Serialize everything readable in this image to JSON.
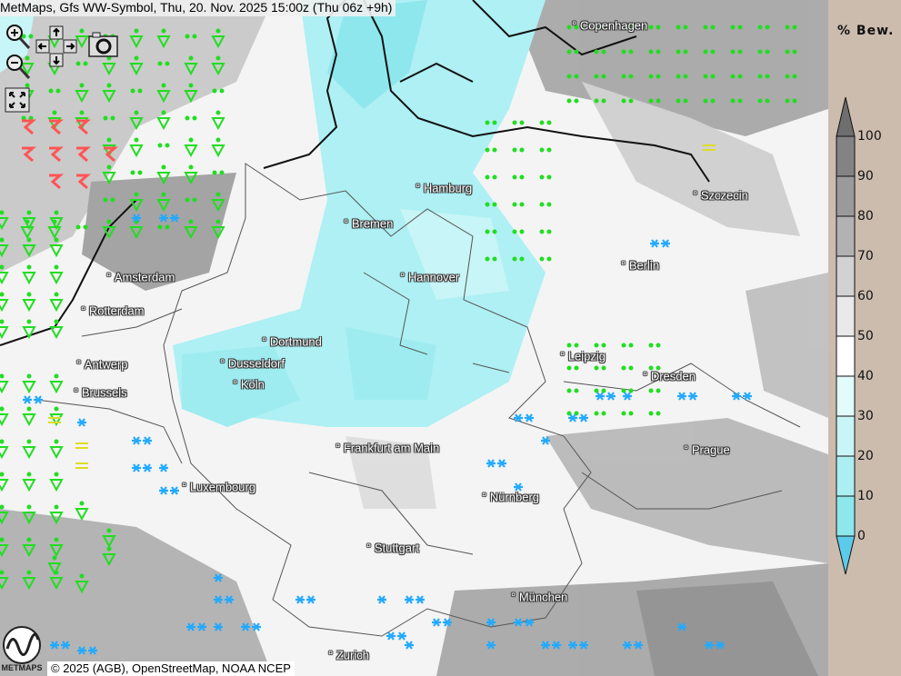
{
  "title": "MetMaps, Gfs WW-Symbol, Thu, 20. Nov. 2025 15:00z (Thu 06z +9h)",
  "controls": {
    "zoom_in": "zoom-in-icon",
    "zoom_out": "zoom-out-icon",
    "pan": "pan-arrows-icon",
    "screenshot": "camera-icon",
    "fullscreen": "fullscreen-icon"
  },
  "cities": [
    {
      "name": "Copenhagen"
    },
    {
      "name": "Hamburg"
    },
    {
      "name": "Bremen"
    },
    {
      "name": "Szczecin"
    },
    {
      "name": "Berlin"
    },
    {
      "name": "Amsterdam"
    },
    {
      "name": "Hannover"
    },
    {
      "name": "Rotterdam"
    },
    {
      "name": "Dortmund"
    },
    {
      "name": "Leipzig"
    },
    {
      "name": "Antwerp"
    },
    {
      "name": "Dusseldorf"
    },
    {
      "name": "Dresden"
    },
    {
      "name": "Köln"
    },
    {
      "name": "Brussels"
    },
    {
      "name": "Frankfurt am Main"
    },
    {
      "name": "Prague"
    },
    {
      "name": "Luxembourg"
    },
    {
      "name": "Nürnberg"
    },
    {
      "name": "Stuttgart"
    },
    {
      "name": "München"
    },
    {
      "name": "Zurich"
    }
  ],
  "copyright": "© 2025 (AGB), OpenStreetMap, NOAA NCEP",
  "logo_text": "METMAPS",
  "legend": {
    "title": "% Bew.",
    "ticks": [
      "100",
      "90",
      "80",
      "70",
      "60",
      "50",
      "40",
      "30",
      "20",
      "10",
      "0"
    ],
    "colors": [
      "#6e6e6e",
      "#838383",
      "#9a9a9a",
      "#b2b2b2",
      "#d2d2d2",
      "#e9e9e9",
      "#ffffff",
      "#e2fbfb",
      "#c8f5f7",
      "#aceff3",
      "#8ee7ed",
      "#5ccbea"
    ]
  },
  "symbol_colors": {
    "rain": "#22dd22",
    "snow": "#22aaff",
    "thunder": "#ff5555",
    "fog": "#dddd22"
  }
}
